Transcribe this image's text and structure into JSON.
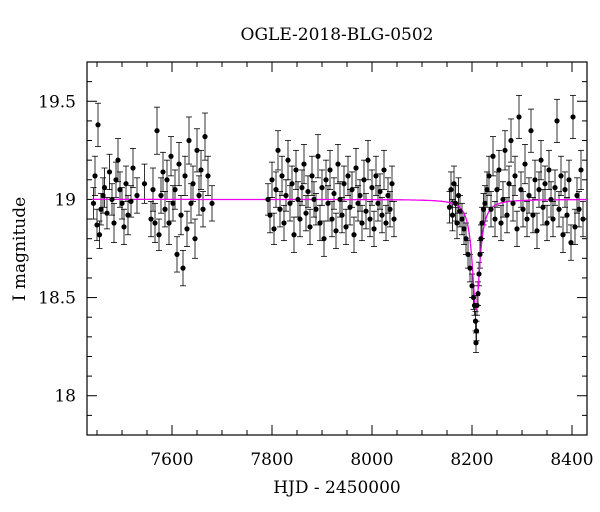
{
  "chart_data": {
    "type": "scatter",
    "title": "OGLE-2018-BLG-0502",
    "xlabel": "HJD - 2450000",
    "ylabel": "I magnitude",
    "xlim": [
      7430,
      8430
    ],
    "ylim": [
      19.7,
      17.8
    ],
    "y_inverted": true,
    "x_ticks": [
      7600,
      7800,
      8000,
      8200,
      8400
    ],
    "y_ticks": [
      18,
      18.5,
      19,
      19.5
    ],
    "x_tick_labels": [
      "7600",
      "7800",
      "8000",
      "8200",
      "8400"
    ],
    "y_tick_labels": [
      "18",
      "18.5",
      "19",
      "19.5"
    ],
    "grid": false,
    "colors": {
      "points": "#000000",
      "model": "#ee00ee"
    },
    "model_baseline": 19.0,
    "model_peak": {
      "x": 8208,
      "y": 18.44,
      "tE": 10
    },
    "points": [
      [
        7443,
        18.98,
        0.08
      ],
      [
        7446,
        19.12,
        0.1
      ],
      [
        7450,
        18.87,
        0.08
      ],
      [
        7452,
        19.38,
        0.11
      ],
      [
        7455,
        18.82,
        0.07
      ],
      [
        7458,
        18.95,
        0.08
      ],
      [
        7462,
        19.02,
        0.09
      ],
      [
        7465,
        19.06,
        0.1
      ],
      [
        7470,
        18.93,
        0.08
      ],
      [
        7475,
        19.14,
        0.09
      ],
      [
        7480,
        19.0,
        0.08
      ],
      [
        7484,
        18.88,
        0.1
      ],
      [
        7488,
        19.1,
        0.09
      ],
      [
        7492,
        19.2,
        0.11
      ],
      [
        7496,
        19.05,
        0.09
      ],
      [
        7500,
        18.98,
        0.08
      ],
      [
        7504,
        18.86,
        0.09
      ],
      [
        7508,
        19.08,
        0.09
      ],
      [
        7512,
        18.92,
        0.1
      ],
      [
        7518,
        18.99,
        0.08
      ],
      [
        7522,
        19.16,
        0.1
      ],
      [
        7530,
        19.02,
        0.09
      ],
      [
        7545,
        19.08,
        0.1
      ],
      [
        7558,
        18.9,
        0.09
      ],
      [
        7562,
        19.05,
        0.11
      ],
      [
        7566,
        18.88,
        0.1
      ],
      [
        7570,
        19.35,
        0.12
      ],
      [
        7574,
        18.82,
        0.08
      ],
      [
        7578,
        19.02,
        0.09
      ],
      [
        7582,
        19.14,
        0.1
      ],
      [
        7586,
        18.95,
        0.09
      ],
      [
        7590,
        19.1,
        0.1
      ],
      [
        7594,
        18.88,
        0.11
      ],
      [
        7598,
        19.22,
        0.1
      ],
      [
        7602,
        18.98,
        0.09
      ],
      [
        7606,
        19.05,
        0.1
      ],
      [
        7610,
        18.72,
        0.09
      ],
      [
        7614,
        19.18,
        0.11
      ],
      [
        7618,
        18.92,
        0.1
      ],
      [
        7622,
        18.65,
        0.09
      ],
      [
        7626,
        19.12,
        0.1
      ],
      [
        7630,
        18.85,
        0.09
      ],
      [
        7634,
        19.3,
        0.12
      ],
      [
        7638,
        18.98,
        0.1
      ],
      [
        7642,
        19.08,
        0.09
      ],
      [
        7646,
        18.8,
        0.1
      ],
      [
        7650,
        19.25,
        0.11
      ],
      [
        7654,
        19.02,
        0.1
      ],
      [
        7658,
        19.15,
        0.1
      ],
      [
        7662,
        18.95,
        0.09
      ],
      [
        7666,
        19.32,
        0.12
      ],
      [
        7672,
        19.12,
        0.1
      ],
      [
        7680,
        18.98,
        0.09
      ],
      [
        7792,
        19.0,
        0.08
      ],
      [
        7796,
        18.92,
        0.09
      ],
      [
        7800,
        19.1,
        0.09
      ],
      [
        7804,
        18.85,
        0.08
      ],
      [
        7808,
        19.05,
        0.09
      ],
      [
        7812,
        19.25,
        0.1
      ],
      [
        7816,
        18.95,
        0.09
      ],
      [
        7820,
        19.12,
        0.1
      ],
      [
        7824,
        18.88,
        0.09
      ],
      [
        7828,
        19.02,
        0.08
      ],
      [
        7832,
        19.2,
        0.1
      ],
      [
        7836,
        18.98,
        0.09
      ],
      [
        7840,
        19.08,
        0.09
      ],
      [
        7844,
        18.82,
        0.09
      ],
      [
        7848,
        19.15,
        0.1
      ],
      [
        7852,
        19.0,
        0.09
      ],
      [
        7856,
        18.9,
        0.09
      ],
      [
        7860,
        19.06,
        0.09
      ],
      [
        7864,
        19.18,
        0.1
      ],
      [
        7868,
        18.93,
        0.09
      ],
      [
        7872,
        19.04,
        0.08
      ],
      [
        7876,
        18.86,
        0.09
      ],
      [
        7880,
        19.12,
        0.1
      ],
      [
        7884,
        19.0,
        0.09
      ],
      [
        7888,
        18.95,
        0.08
      ],
      [
        7892,
        19.22,
        0.11
      ],
      [
        7896,
        18.88,
        0.09
      ],
      [
        7900,
        19.06,
        0.09
      ],
      [
        7904,
        18.8,
        0.09
      ],
      [
        7908,
        19.1,
        0.1
      ],
      [
        7912,
        18.98,
        0.09
      ],
      [
        7916,
        19.15,
        0.1
      ],
      [
        7920,
        18.9,
        0.09
      ],
      [
        7924,
        19.03,
        0.08
      ],
      [
        7928,
        18.84,
        0.09
      ],
      [
        7932,
        19.18,
        0.1
      ],
      [
        7936,
        19.0,
        0.09
      ],
      [
        7940,
        18.92,
        0.09
      ],
      [
        7944,
        19.08,
        0.09
      ],
      [
        7948,
        18.86,
        0.09
      ],
      [
        7952,
        19.12,
        0.1
      ],
      [
        7956,
        18.96,
        0.09
      ],
      [
        7960,
        19.05,
        0.09
      ],
      [
        7964,
        18.82,
        0.09
      ],
      [
        7968,
        19.16,
        0.1
      ],
      [
        7972,
        18.98,
        0.09
      ],
      [
        7976,
        19.02,
        0.08
      ],
      [
        7980,
        18.88,
        0.09
      ],
      [
        7984,
        19.1,
        0.1
      ],
      [
        7988,
        18.94,
        0.09
      ],
      [
        7992,
        19.2,
        0.1
      ],
      [
        7996,
        18.9,
        0.09
      ],
      [
        8000,
        19.06,
        0.09
      ],
      [
        8004,
        18.85,
        0.09
      ],
      [
        8008,
        19.12,
        0.1
      ],
      [
        8012,
        18.98,
        0.09
      ],
      [
        8016,
        19.04,
        0.09
      ],
      [
        8020,
        18.92,
        0.09
      ],
      [
        8024,
        19.15,
        0.1
      ],
      [
        8028,
        18.88,
        0.09
      ],
      [
        8032,
        19.02,
        0.09
      ],
      [
        8036,
        18.95,
        0.09
      ],
      [
        8040,
        19.08,
        0.09
      ],
      [
        8044,
        18.9,
        0.09
      ],
      [
        8155,
        18.96,
        0.08
      ],
      [
        8158,
        19.05,
        0.09
      ],
      [
        8161,
        18.92,
        0.08
      ],
      [
        8164,
        19.08,
        0.09
      ],
      [
        8167,
        18.98,
        0.09
      ],
      [
        8170,
        18.88,
        0.08
      ],
      [
        8173,
        19.02,
        0.09
      ],
      [
        8176,
        18.94,
        0.08
      ],
      [
        8180,
        18.9,
        0.08
      ],
      [
        8184,
        18.85,
        0.08
      ],
      [
        8188,
        18.8,
        0.08
      ],
      [
        8192,
        18.72,
        0.07
      ],
      [
        8196,
        18.65,
        0.07
      ],
      [
        8200,
        18.56,
        0.06
      ],
      [
        8203,
        18.5,
        0.06
      ],
      [
        8205,
        18.46,
        0.05
      ],
      [
        8207,
        18.38,
        0.05
      ],
      [
        8208,
        18.27,
        0.05
      ],
      [
        8209,
        18.33,
        0.05
      ],
      [
        8210,
        18.46,
        0.05
      ],
      [
        8212,
        18.52,
        0.06
      ],
      [
        8214,
        18.62,
        0.06
      ],
      [
        8216,
        18.72,
        0.07
      ],
      [
        8218,
        18.8,
        0.07
      ],
      [
        8220,
        18.88,
        0.08
      ],
      [
        8223,
        18.95,
        0.08
      ],
      [
        8226,
        18.98,
        0.09
      ],
      [
        8230,
        19.05,
        0.09
      ],
      [
        8234,
        19.12,
        0.1
      ],
      [
        8238,
        18.95,
        0.09
      ],
      [
        8242,
        19.22,
        0.1
      ],
      [
        8246,
        18.9,
        0.09
      ],
      [
        8250,
        19.05,
        0.09
      ],
      [
        8254,
        19.15,
        0.1
      ],
      [
        8258,
        18.88,
        0.09
      ],
      [
        8262,
        19.0,
        0.09
      ],
      [
        8266,
        19.25,
        0.1
      ],
      [
        8270,
        18.92,
        0.09
      ],
      [
        8274,
        19.08,
        0.09
      ],
      [
        8278,
        19.3,
        0.11
      ],
      [
        8282,
        18.98,
        0.09
      ],
      [
        8286,
        19.12,
        0.1
      ],
      [
        8290,
        18.85,
        0.09
      ],
      [
        8294,
        19.42,
        0.11
      ],
      [
        8298,
        19.05,
        0.09
      ],
      [
        8302,
        18.95,
        0.09
      ],
      [
        8306,
        19.18,
        0.1
      ],
      [
        8310,
        18.9,
        0.09
      ],
      [
        8314,
        19.02,
        0.09
      ],
      [
        8318,
        19.35,
        0.11
      ],
      [
        8322,
        18.92,
        0.09
      ],
      [
        8326,
        19.1,
        0.1
      ],
      [
        8330,
        18.84,
        0.09
      ],
      [
        8334,
        19.05,
        0.09
      ],
      [
        8338,
        19.2,
        0.1
      ],
      [
        8342,
        18.96,
        0.09
      ],
      [
        8346,
        19.08,
        0.09
      ],
      [
        8350,
        18.88,
        0.09
      ],
      [
        8354,
        19.15,
        0.1
      ],
      [
        8358,
        19.0,
        0.09
      ],
      [
        8362,
        18.9,
        0.09
      ],
      [
        8366,
        19.06,
        0.09
      ],
      [
        8370,
        19.4,
        0.11
      ],
      [
        8374,
        18.95,
        0.09
      ],
      [
        8378,
        19.12,
        0.1
      ],
      [
        8382,
        18.82,
        0.09
      ],
      [
        8386,
        19.05,
        0.09
      ],
      [
        8390,
        18.92,
        0.09
      ],
      [
        8394,
        19.1,
        0.1
      ],
      [
        8398,
        18.78,
        0.09
      ],
      [
        8402,
        19.42,
        0.11
      ],
      [
        8406,
        18.86,
        0.09
      ],
      [
        8410,
        19.02,
        0.09
      ],
      [
        8414,
        18.95,
        0.09
      ],
      [
        8418,
        19.15,
        0.1
      ],
      [
        8422,
        18.9,
        0.09
      ]
    ]
  }
}
